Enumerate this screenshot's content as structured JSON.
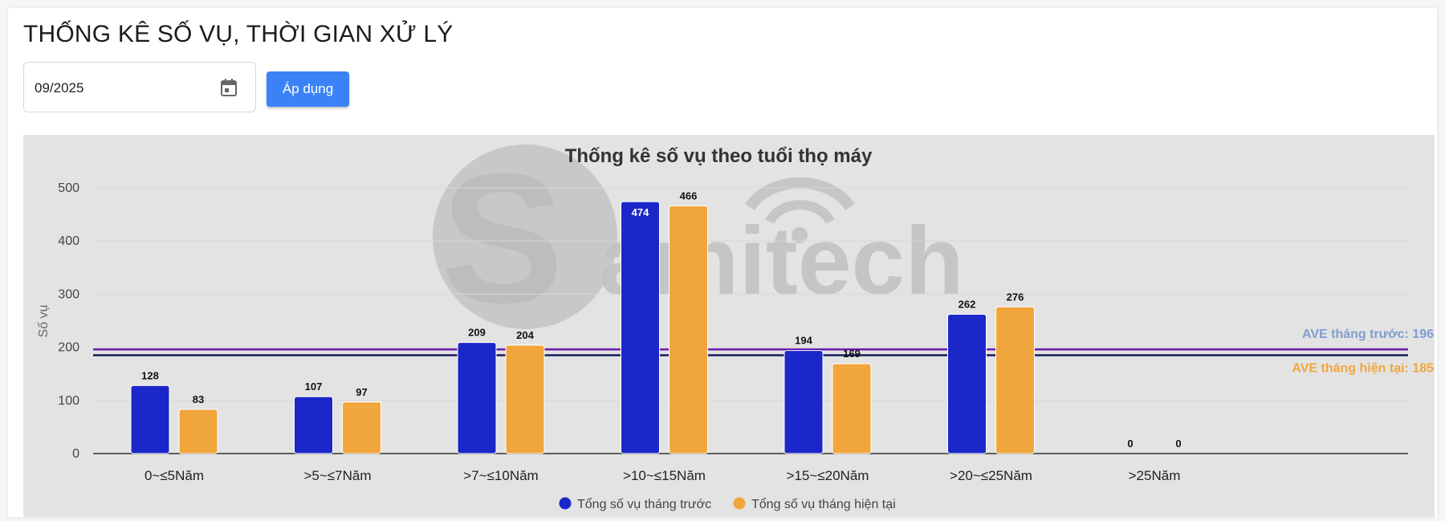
{
  "page": {
    "title": "THỐNG KÊ SỐ VỤ, THỜI GIAN XỬ LÝ"
  },
  "filter": {
    "date_value": "09/2025",
    "calendar_icon": "calendar-icon",
    "apply_label": "Áp dụng"
  },
  "watermark": {
    "text": "Samitech"
  },
  "colors": {
    "prev": "#1b27c9",
    "curr": "#f0a63c",
    "ave_prev_line": "#6a1bb0",
    "ave_curr_line": "#141c5e",
    "ave_prev_label": "#7f9fcf",
    "ave_curr_label": "#f0a63c"
  },
  "chart_data": {
    "type": "bar",
    "title": "Thống kê số vụ theo tuổi thọ máy",
    "xlabel": "",
    "ylabel": "Số vụ",
    "ylim": [
      0,
      500
    ],
    "yticks": [
      0,
      100,
      200,
      300,
      400,
      500
    ],
    "grid": true,
    "categories": [
      "0~≤5Năm",
      ">5~≤7Năm",
      ">7~≤10Năm",
      ">10~≤15Năm",
      ">15~≤20Năm",
      ">20~≤25Năm",
      ">25Năm"
    ],
    "series": [
      {
        "name": "Tổng số vụ tháng trước",
        "values": [
          128,
          107,
          209,
          474,
          194,
          262,
          0
        ]
      },
      {
        "name": "Tổng số vụ tháng hiện tại",
        "values": [
          83,
          97,
          204,
          466,
          169,
          276,
          0
        ]
      }
    ],
    "reference_lines": [
      {
        "label": "AVE tháng trước: 196",
        "value": 196
      },
      {
        "label": "AVE tháng hiện tại: 185",
        "value": 185
      }
    ],
    "legend_position": "bottom"
  }
}
